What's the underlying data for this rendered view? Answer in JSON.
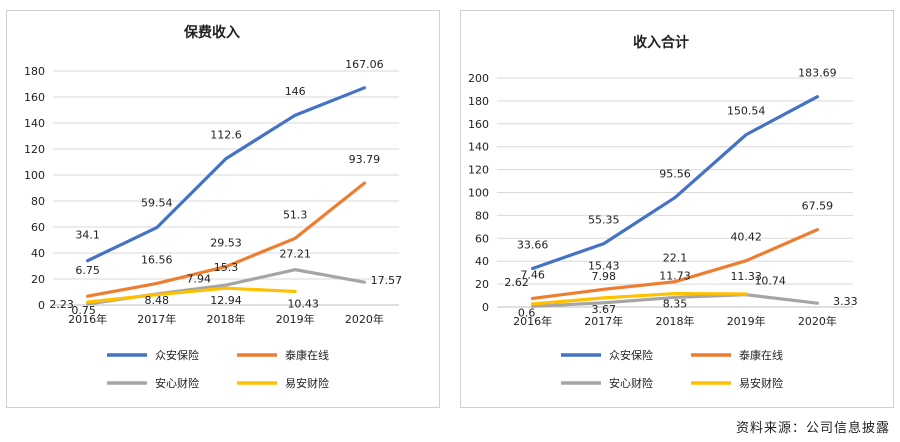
{
  "source_note": "资料来源：公司信息披露",
  "colors": {
    "zhongan": "#4472C4",
    "taikang": "#ED7D31",
    "anxin": "#A5A5A5",
    "yian": "#FFC000",
    "grid": "#d9d9d9",
    "axis": "#bfbfbf",
    "text": "#222222"
  },
  "chart_data": [
    {
      "type": "line",
      "title": "保费收入",
      "x": [
        "2016年",
        "2017年",
        "2018年",
        "2019年",
        "2020年"
      ],
      "ylim": [
        0,
        180
      ],
      "yticks": [
        0,
        20,
        40,
        60,
        80,
        100,
        120,
        140,
        160,
        180
      ],
      "grid": true,
      "legend_position": "bottom",
      "series": [
        {
          "name": "众安保险",
          "color": "#4472C4",
          "values": [
            34.1,
            59.54,
            112.6,
            146,
            167.06
          ],
          "labels": [
            "34.1",
            "59.54",
            "112.6",
            "146",
            "167.06"
          ]
        },
        {
          "name": "泰康在线",
          "color": "#ED7D31",
          "values": [
            6.75,
            16.56,
            29.53,
            51.3,
            93.79
          ],
          "labels": [
            "6.75",
            "16.56",
            "29.53",
            "51.3",
            "93.79"
          ]
        },
        {
          "name": "安心财险",
          "color": "#A5A5A5",
          "values": [
            0.75,
            8.48,
            15.3,
            27.21,
            17.57
          ],
          "labels": [
            "0.75",
            "8.48",
            "15.3",
            "27.21",
            "17.57"
          ]
        },
        {
          "name": "易安财险",
          "color": "#FFC000",
          "values": [
            2.23,
            7.94,
            12.94,
            10.43,
            null
          ],
          "labels": [
            "2.23",
            "7.94",
            "12.94",
            "10.43",
            null
          ]
        }
      ]
    },
    {
      "type": "line",
      "title": "收入合计",
      "x": [
        "2016年",
        "2017年",
        "2018年",
        "2019年",
        "2020年"
      ],
      "ylim": [
        0,
        200
      ],
      "yticks": [
        0,
        20,
        40,
        60,
        80,
        100,
        120,
        140,
        160,
        180,
        200
      ],
      "grid": true,
      "legend_position": "bottom",
      "series": [
        {
          "name": "众安保险",
          "color": "#4472C4",
          "values": [
            33.66,
            55.35,
            95.56,
            150.54,
            183.69
          ],
          "labels": [
            "33.66",
            "55.35",
            "95.56",
            "150.54",
            "183.69"
          ]
        },
        {
          "name": "泰康在线",
          "color": "#ED7D31",
          "values": [
            7.46,
            15.43,
            22.1,
            40.42,
            67.59
          ],
          "labels": [
            "7.46",
            "15.43",
            "22.1",
            "40.42",
            "67.59"
          ]
        },
        {
          "name": "安心财险",
          "color": "#A5A5A5",
          "values": [
            0.6,
            3.67,
            8.35,
            10.74,
            3.33
          ],
          "labels": [
            "0.6",
            "3.67",
            "8.35",
            "10.74",
            "3.33"
          ]
        },
        {
          "name": "易安财险",
          "color": "#FFC000",
          "values": [
            2.62,
            7.98,
            11.73,
            11.33,
            null
          ],
          "labels": [
            "2.62",
            "7.98",
            "11.73",
            "11.33",
            null
          ]
        }
      ]
    }
  ]
}
